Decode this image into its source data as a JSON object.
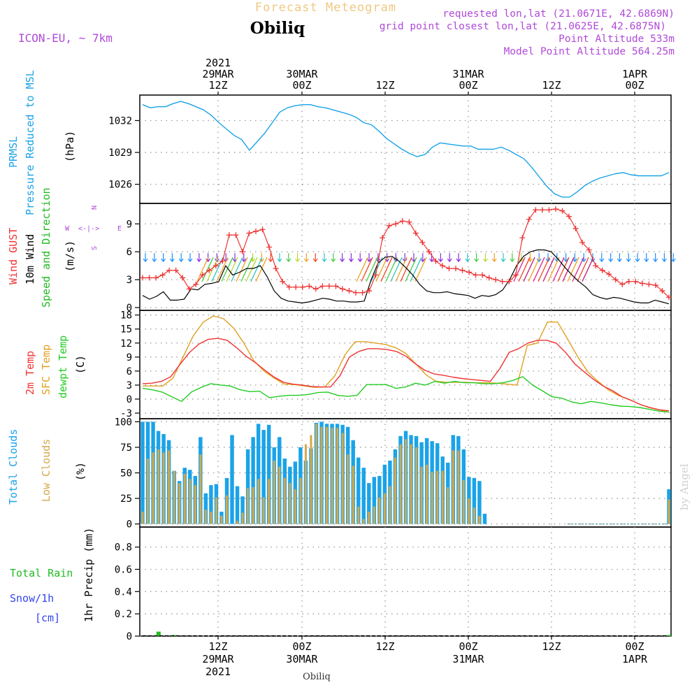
{
  "header": {
    "product": "Forecast Meteogram",
    "station": "Obiliq",
    "model": "ICON-EU, ~ 7km",
    "info_lines": [
      "requested lon,lat (21.0671E, 42.6869N)",
      "grid point closest lon,lat (21.0625E, 42.6875N)",
      "Point Altitude 533m",
      "Model Point Altitude 564.25m"
    ],
    "footer_station": "Obiliq",
    "credit": "by Angel"
  },
  "colors": {
    "pressure": "#1aa3e8",
    "gust": "#ee3333",
    "wind": "#000000",
    "temp": "#ee3333",
    "sfc": "#e0a020",
    "dewpt": "#22cc22",
    "total_clouds": "#1aa3e8",
    "low_clouds": "#d4a84a",
    "rain": "#22bb22",
    "snow": "#3344ee",
    "info": "#b04ad8",
    "product": "#f0c880"
  },
  "chart_data": [
    {
      "type": "line",
      "title": "Pressure Reduced to MSL",
      "ylabel_lines": [
        "PRMSL",
        "Pressure Reduced to MSL"
      ],
      "unit": "(hPa)",
      "ylim": [
        1024.2,
        1034.4
      ],
      "yticks": [
        1026,
        1029,
        1032
      ],
      "grid": true,
      "series": [
        {
          "values": [
            1033.5,
            1033.2,
            1033.3,
            1033.3,
            1033.6,
            1033.8,
            1033.6,
            1033.3,
            1033.0,
            1032.5,
            1031.8,
            1031.2,
            1030.6,
            1030.2,
            1029.2,
            1030.0,
            1030.8,
            1031.8,
            1032.8,
            1033.2,
            1033.4,
            1033.5,
            1033.5,
            1033.3,
            1033.2,
            1033.0,
            1032.8,
            1032.6,
            1032.3,
            1031.8,
            1031.6,
            1031.0,
            1030.3,
            1029.8,
            1029.3,
            1028.9,
            1028.6,
            1028.8,
            1029.5,
            1029.9,
            1029.8,
            1029.7,
            1029.6,
            1029.6,
            1029.3,
            1029.3,
            1029.3,
            1029.5,
            1029.2,
            1028.8,
            1028.4,
            1027.6,
            1026.7,
            1025.8,
            1025.1,
            1024.8,
            1024.8,
            1025.3,
            1025.9,
            1026.3,
            1026.6,
            1026.8,
            1027.0,
            1027.1,
            1026.9,
            1026.8,
            1026.8,
            1026.8,
            1026.8,
            1027.1
          ]
        }
      ]
    },
    {
      "type": "line",
      "title": "Wind GUST / 10m Wind Speed and Direction",
      "ylabel_lines": [
        "Wind GUST",
        "10m Wind",
        "Speed and Direction"
      ],
      "unit": "(m/s)",
      "compass": {
        "n": "N",
        "s": "S",
        "w": "W",
        "e": "E",
        "symbol": "<-|->"
      },
      "ylim": [
        -0.3,
        11.2
      ],
      "yticks": [
        0,
        3,
        6,
        9
      ],
      "grid": true,
      "series": [
        {
          "name": "Wind GUST",
          "values": [
            3.2,
            3.2,
            3.2,
            3.5,
            4.0,
            4.0,
            3.2,
            2.0,
            2.5,
            3.5,
            4.0,
            4.5,
            5.0,
            7.8,
            7.8,
            6.0,
            8.0,
            8.2,
            8.4,
            6.5,
            4.2,
            2.8,
            2.2,
            2.2,
            2.2,
            2.3,
            2.0,
            2.3,
            2.3,
            2.3,
            2.0,
            1.8,
            1.6,
            1.6,
            1.8,
            3.5,
            7.5,
            8.8,
            9.0,
            9.3,
            9.2,
            8.0,
            7.0,
            6.0,
            5.0,
            4.5,
            4.2,
            4.2,
            4.0,
            3.8,
            3.5,
            3.5,
            3.2,
            3.0,
            2.8,
            2.8,
            3.5,
            7.5,
            9.5,
            10.5,
            10.5,
            10.5,
            10.6,
            10.4,
            9.8,
            8.5,
            7.0,
            6.2,
            4.5,
            4.0,
            3.6,
            3.0,
            2.5,
            2.8,
            2.8,
            2.6,
            2.5,
            2.4,
            1.8,
            1.1
          ]
        },
        {
          "name": "10m Wind",
          "values": [
            1.3,
            0.9,
            1.2,
            1.7,
            0.8,
            0.8,
            0.9,
            2.0,
            1.9,
            2.5,
            2.6,
            2.8,
            4.5,
            3.5,
            3.8,
            4.2,
            4.2,
            4.5,
            3.3,
            1.8,
            1.0,
            0.7,
            0.6,
            0.5,
            0.6,
            0.8,
            1.0,
            0.9,
            0.7,
            0.7,
            0.6,
            0.6,
            0.7,
            3.0,
            4.8,
            5.4,
            5.5,
            5.0,
            4.3,
            3.5,
            2.5,
            1.8,
            1.6,
            1.6,
            1.7,
            1.5,
            1.4,
            1.3,
            1.0,
            1.3,
            1.2,
            1.4,
            1.9,
            3.0,
            4.5,
            5.5,
            6.0,
            6.2,
            6.2,
            6.0,
            5.2,
            4.3,
            3.5,
            2.8,
            2.2,
            1.4,
            1.1,
            0.9,
            1.1,
            1.0,
            0.8,
            0.6,
            0.5,
            0.5,
            0.8,
            0.6,
            0.4
          ]
        }
      ]
    },
    {
      "type": "line",
      "title": "2m Temp / SFC Temp / dewpt Temp",
      "ylabel_lines": [
        "2m Temp",
        "SFC Temp",
        "dewpt Temp"
      ],
      "unit": "(C)",
      "ylim": [
        -4.2,
        19.0
      ],
      "yticks": [
        -3,
        0,
        3,
        6,
        9,
        12,
        15,
        18
      ],
      "grid": true,
      "series": [
        {
          "name": "2m Temp",
          "values": [
            3.3,
            3.4,
            3.8,
            4.8,
            7.5,
            10.0,
            11.8,
            12.8,
            13.0,
            12.6,
            11.0,
            9.2,
            7.8,
            6.2,
            4.7,
            3.6,
            3.2,
            3.0,
            2.7,
            2.6,
            2.6,
            5.0,
            9.0,
            10.2,
            10.8,
            10.8,
            10.6,
            10.2,
            9.2,
            7.6,
            6.2,
            5.4,
            5.1,
            4.7,
            4.4,
            4.2,
            4.0,
            3.8,
            6.5,
            10.0,
            10.8,
            12.0,
            12.6,
            12.6,
            12.0,
            10.0,
            7.5,
            5.8,
            4.2,
            2.8,
            1.8,
            0.5,
            -0.3,
            -1.2,
            -1.8,
            -2.3,
            -2.5
          ]
        },
        {
          "name": "SFC Temp",
          "values": [
            2.8,
            2.8,
            2.8,
            4.5,
            9.0,
            13.5,
            16.5,
            17.8,
            17.2,
            15.2,
            12.0,
            8.2,
            6.0,
            4.5,
            3.2,
            3.1,
            2.8,
            2.5,
            2.6,
            5.0,
            9.5,
            12.3,
            12.3,
            12.0,
            11.7,
            11.0,
            9.8,
            7.5,
            5.2,
            3.8,
            3.6,
            3.6,
            3.6,
            3.5,
            3.5,
            3.4,
            3.2,
            3.0,
            11.5,
            12.0,
            16.5,
            16.5,
            12.8,
            9.0,
            5.8,
            3.8,
            2.0,
            0.8,
            0.0,
            -1.0,
            -1.8,
            -2.3,
            -2.8
          ]
        },
        {
          "name": "dewpt Temp",
          "values": [
            2.3,
            2.0,
            1.5,
            0.5,
            -0.5,
            1.5,
            2.5,
            3.3,
            3.0,
            2.8,
            2.0,
            1.6,
            1.7,
            0.3,
            0.6,
            0.8,
            0.8,
            1.0,
            1.4,
            1.5,
            0.8,
            0.6,
            0.8,
            3.1,
            3.1,
            3.1,
            2.3,
            2.6,
            3.4,
            3.0,
            3.8,
            3.4,
            3.8,
            3.5,
            3.5,
            3.3,
            3.3,
            3.5,
            4.0,
            4.8,
            3.0,
            1.8,
            0.5,
            0.2,
            -0.6,
            -1.0,
            -0.5,
            -0.8,
            -1.2,
            -1.5,
            -1.6,
            -1.8,
            -2.2,
            -2.6,
            -2.8
          ]
        }
      ]
    },
    {
      "type": "bar",
      "title": "Total Clouds / Low Clouds",
      "ylabel_lines": [
        "Total Clouds",
        "Low Clouds"
      ],
      "unit": "(%)",
      "ylim": [
        -3,
        103
      ],
      "yticks": [
        0,
        25,
        50,
        75,
        100
      ],
      "grid": true,
      "series": [
        {
          "name": "Total Clouds",
          "values": [
            100,
            100,
            100,
            91,
            88,
            82,
            52,
            42,
            55,
            53,
            47,
            85,
            30,
            38,
            39,
            12,
            45,
            87,
            37,
            27,
            73,
            85,
            98,
            92,
            97,
            75,
            85,
            64,
            56,
            61,
            75,
            62,
            74,
            99,
            100,
            98,
            98,
            98,
            97,
            95,
            82,
            65,
            55,
            40,
            46,
            47,
            58,
            62,
            73,
            86,
            91,
            87,
            86,
            80,
            84,
            81,
            79,
            66,
            60,
            87,
            86,
            73,
            46,
            45,
            42,
            10,
            0,
            0,
            0,
            0,
            0,
            0,
            0,
            0,
            0,
            0,
            0,
            0,
            0,
            0,
            0,
            0,
            0,
            0,
            0,
            0,
            0,
            0,
            0,
            0,
            0,
            0,
            0,
            0,
            0,
            0,
            0,
            0,
            0,
            0,
            34
          ]
        },
        {
          "name": "Low Clouds",
          "values": [
            12,
            64,
            70,
            73,
            70,
            72,
            52,
            40,
            49,
            44,
            38,
            68,
            14,
            12,
            26,
            8,
            28,
            0,
            3,
            11,
            35,
            36,
            44,
            26,
            44,
            62,
            56,
            45,
            40,
            34,
            45,
            78,
            87,
            98,
            95,
            95,
            94,
            94,
            89,
            68,
            57,
            17,
            5,
            12,
            17,
            26,
            30,
            37,
            65,
            78,
            83,
            78,
            75,
            56,
            58,
            51,
            52,
            52,
            36,
            72,
            72,
            43,
            25,
            16,
            8,
            0,
            0,
            0,
            0,
            0,
            0,
            0,
            0,
            0,
            0,
            0,
            0,
            0,
            0,
            0,
            0,
            0,
            0,
            0,
            0,
            0,
            0,
            0,
            0,
            0,
            0,
            0,
            0,
            0,
            0,
            0,
            0,
            0,
            0,
            0,
            24
          ]
        }
      ]
    },
    {
      "type": "bar",
      "title": "1hr Precip",
      "ylabel_lines": [
        "1hr Precip (mm)"
      ],
      "legend": [
        "Total Rain",
        "Snow/1h",
        "[cm]"
      ],
      "ylim": [
        0,
        0.98
      ],
      "yticks": [
        0,
        0.2,
        0.4,
        0.6,
        0.8
      ],
      "grid": true,
      "series": [
        {
          "name": "Total Rain",
          "values": [
            0,
            0,
            0.04,
            0,
            0.01,
            0,
            0,
            0,
            0,
            0,
            0,
            0,
            0,
            0,
            0,
            0,
            0,
            0,
            0,
            0,
            0,
            0,
            0,
            0,
            0,
            0,
            0,
            0,
            0,
            0,
            0,
            0,
            0,
            0,
            0,
            0,
            0,
            0,
            0,
            0,
            0,
            0,
            0,
            0,
            0,
            0,
            0,
            0,
            0,
            0,
            0,
            0,
            0,
            0,
            0,
            0,
            0,
            0,
            0,
            0,
            0,
            0,
            0,
            0,
            0,
            0,
            0.01
          ]
        }
      ]
    }
  ],
  "time_axis": {
    "top": [
      {
        "lines": [
          "2021",
          "29MAR",
          "12Z"
        ]
      },
      {
        "lines": [
          "30MAR",
          "00Z"
        ]
      },
      {
        "lines": [
          "12Z"
        ]
      },
      {
        "lines": [
          "31MAR",
          "00Z"
        ]
      },
      {
        "lines": [
          "12Z"
        ]
      },
      {
        "lines": [
          "1APR",
          "00Z"
        ]
      }
    ],
    "bottom": [
      {
        "lines": [
          "12Z",
          "29MAR",
          "2021"
        ]
      },
      {
        "lines": [
          "00Z",
          "30MAR"
        ]
      },
      {
        "lines": [
          "12Z"
        ]
      },
      {
        "lines": [
          "00Z",
          "31MAR"
        ]
      },
      {
        "lines": [
          "12Z"
        ]
      },
      {
        "lines": [
          "00Z",
          "1APR"
        ]
      }
    ]
  }
}
